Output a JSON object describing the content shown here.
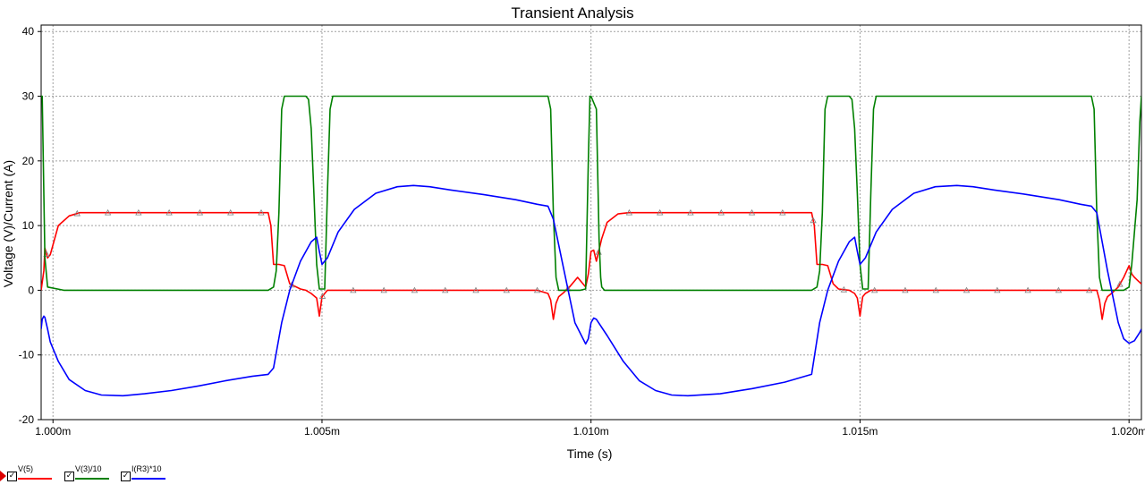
{
  "chart_data": {
    "type": "line",
    "title": "Transient Analysis",
    "xlabel": "Time (s)",
    "ylabel": "Voltage (V)/Current (A)",
    "xlim": [
      0.99978,
      1.02023
    ],
    "ylim": [
      -20,
      41
    ],
    "grid": true,
    "x_ticks": [
      {
        "value": 1.0,
        "label": "1.000m"
      },
      {
        "value": 1.005,
        "label": "1.005m"
      },
      {
        "value": 1.01,
        "label": "1.010m"
      },
      {
        "value": 1.015,
        "label": "1.015m"
      },
      {
        "value": 1.02,
        "label": "1.020m"
      }
    ],
    "y_ticks": [
      {
        "value": 40,
        "label": "40"
      },
      {
        "value": 30,
        "label": "30"
      },
      {
        "value": 20,
        "label": "20"
      },
      {
        "value": 10,
        "label": "10"
      },
      {
        "value": 0,
        "label": "0"
      },
      {
        "value": -10,
        "label": "-10"
      },
      {
        "value": -20,
        "label": "-20"
      }
    ],
    "legend_position": "bottom-left",
    "series": [
      {
        "name": "V(5)",
        "color": "#ff0000",
        "marker": "triangle",
        "x": [
          0.99978,
          0.99983,
          0.99985,
          0.9999,
          0.99995,
          1.0001,
          1.0003,
          1.0005,
          1.0007,
          1.0009,
          1.0012,
          1.0016,
          1.002,
          1.0025,
          1.003,
          1.0035,
          1.004,
          1.00405,
          1.0041,
          1.0042,
          1.0043,
          1.0044,
          1.0046,
          1.0047,
          1.0048,
          1.0049,
          1.00495,
          1.005,
          1.00505,
          1.0051,
          1.0052,
          1.0054,
          1.006,
          1.007,
          1.008,
          1.009,
          1.0092,
          1.00925,
          1.0093,
          1.00935,
          1.0094,
          1.0095,
          1.0096,
          1.00975,
          1.0099,
          1.00995,
          1.01,
          1.01005,
          1.0101,
          1.0102,
          1.0103,
          1.0105,
          1.0107,
          1.0109,
          1.0111,
          1.0115,
          1.012,
          1.0125,
          1.013,
          1.0135,
          1.0141,
          1.01415,
          1.0142,
          1.0143,
          1.0144,
          1.0145,
          1.0146,
          1.0148,
          1.0149,
          1.01495,
          1.015,
          1.01505,
          1.0151,
          1.0152,
          1.0154,
          1.016,
          1.017,
          1.018,
          1.019,
          1.0194,
          1.01945,
          1.0195,
          1.01955,
          1.0196,
          1.0197,
          1.0198,
          1.0199,
          1.02,
          1.02005,
          1.0201,
          1.0202,
          1.02023
        ],
        "values": [
          0,
          3,
          6.5,
          5,
          5.5,
          10,
          11.5,
          12,
          12,
          12,
          12,
          12,
          12,
          12,
          12,
          12,
          12,
          10,
          4,
          4,
          3.8,
          1,
          0.2,
          0,
          -0.5,
          -1.2,
          -4,
          -1,
          -0.5,
          0,
          0,
          0,
          0,
          0,
          0,
          0,
          -0.5,
          -1.5,
          -4.5,
          -2,
          -1,
          -0.3,
          0.5,
          2,
          0.5,
          2.5,
          6,
          6.2,
          4.5,
          8,
          10.5,
          11.8,
          12,
          12,
          12,
          12,
          12,
          12,
          12,
          12,
          12,
          10,
          4,
          4,
          3.8,
          1,
          0.2,
          0,
          -0.5,
          -1.2,
          -4,
          -1,
          -0.5,
          0,
          0,
          0,
          0,
          0,
          0,
          0,
          -1.5,
          -4.5,
          -2,
          -1,
          -0.3,
          0.5,
          2,
          3.8,
          2.5,
          2,
          1.2,
          1
        ]
      },
      {
        "name": "V(3)/10",
        "color": "#008000",
        "marker": "none",
        "x": [
          0.99978,
          0.9998,
          0.99982,
          0.99985,
          0.9999,
          1.0002,
          1.004,
          1.0041,
          1.00415,
          1.0042,
          1.00425,
          1.0043,
          1.0047,
          1.00475,
          1.0048,
          1.00485,
          1.0049,
          1.00495,
          1.00505,
          1.0051,
          1.00515,
          1.0052,
          1.0053,
          1.0092,
          1.00925,
          1.0093,
          1.00935,
          1.0094,
          1.0098,
          1.0099,
          1.00995,
          1.00998,
          1.01,
          1.0101,
          1.01015,
          1.01018,
          1.0102,
          1.01025,
          1.0103,
          1.0106,
          1.0141,
          1.0142,
          1.01425,
          1.0143,
          1.01435,
          1.0144,
          1.0148,
          1.01485,
          1.0149,
          1.01495,
          1.015,
          1.01505,
          1.01515,
          1.0152,
          1.01525,
          1.0153,
          1.0154,
          1.0193,
          1.01935,
          1.0194,
          1.01945,
          1.0195,
          1.0199,
          1.02,
          1.02005,
          1.02015,
          1.0202,
          1.02023
        ],
        "values": [
          30,
          30,
          20,
          5,
          0.5,
          0,
          0,
          0.5,
          3,
          12,
          28,
          30,
          30,
          29.5,
          25,
          15,
          4,
          0.2,
          0.2,
          15,
          28,
          30,
          30,
          30,
          28,
          12,
          2,
          0,
          0,
          0.2,
          20,
          30,
          30,
          28,
          8,
          2,
          0.5,
          0,
          0,
          0,
          0,
          0.5,
          3,
          12,
          28,
          30,
          30,
          29.5,
          25,
          15,
          4,
          0.2,
          0.2,
          15,
          28,
          30,
          30,
          30,
          28,
          12,
          2,
          0,
          0,
          0.5,
          4,
          14,
          26,
          30
        ]
      },
      {
        "name": "I(R3)*10",
        "color": "#0000ff",
        "marker": "none",
        "x": [
          0.99978,
          0.9998,
          0.99983,
          0.99985,
          0.9999,
          0.99995,
          1.0001,
          1.0003,
          1.0006,
          1.0009,
          1.0013,
          1.0017,
          1.0022,
          1.0027,
          1.0032,
          1.0037,
          1.004,
          1.0041,
          1.00425,
          1.0044,
          1.0046,
          1.0048,
          1.0049,
          1.00495,
          1.005,
          1.0051,
          1.0053,
          1.0056,
          1.006,
          1.0064,
          1.0067,
          1.007,
          1.0074,
          1.008,
          1.0086,
          1.009,
          1.0092,
          1.0093,
          1.0095,
          1.0097,
          1.0099,
          1.00995,
          1.01,
          1.01005,
          1.0101,
          1.0103,
          1.0106,
          1.0109,
          1.0112,
          1.0115,
          1.0118,
          1.0124,
          1.013,
          1.0136,
          1.0141,
          1.01425,
          1.0144,
          1.0146,
          1.0148,
          1.0149,
          1.01495,
          1.015,
          1.0151,
          1.0153,
          1.0156,
          1.016,
          1.0164,
          1.0168,
          1.0171,
          1.0175,
          1.0181,
          1.0187,
          1.0191,
          1.0193,
          1.0194,
          1.0196,
          1.0198,
          1.0199,
          1.02,
          1.0201,
          1.0202,
          1.02023
        ],
        "values": [
          -6,
          -4.5,
          -4,
          -4.2,
          -6,
          -8,
          -11,
          -13.8,
          -15.5,
          -16.2,
          -16.3,
          -16,
          -15.5,
          -14.8,
          -14,
          -13.3,
          -13,
          -12,
          -5,
          0,
          4.5,
          7.5,
          8.2,
          6,
          4,
          5,
          9,
          12.5,
          15,
          16,
          16.2,
          16,
          15.5,
          14.8,
          14,
          13.3,
          13,
          11,
          3,
          -5,
          -8.3,
          -7.5,
          -5,
          -4.3,
          -4.5,
          -7,
          -11,
          -14,
          -15.5,
          -16.2,
          -16.3,
          -16,
          -15.2,
          -14.2,
          -13,
          -5,
          0,
          4.5,
          7.5,
          8.2,
          6,
          4,
          5,
          9,
          12.5,
          15,
          16,
          16.2,
          16,
          15.5,
          14.8,
          14,
          13.3,
          13,
          12,
          3,
          -5,
          -7.5,
          -8.2,
          -7.8,
          -6.5,
          -6
        ]
      }
    ]
  },
  "legend": {
    "items": [
      {
        "label": "V(5)",
        "color": "#ff0000",
        "checked": "✓"
      },
      {
        "label": "V(3)/10",
        "color": "#008000",
        "checked": "✓"
      },
      {
        "label": "I(R3)*10",
        "color": "#0000ff",
        "checked": "✓"
      }
    ]
  }
}
